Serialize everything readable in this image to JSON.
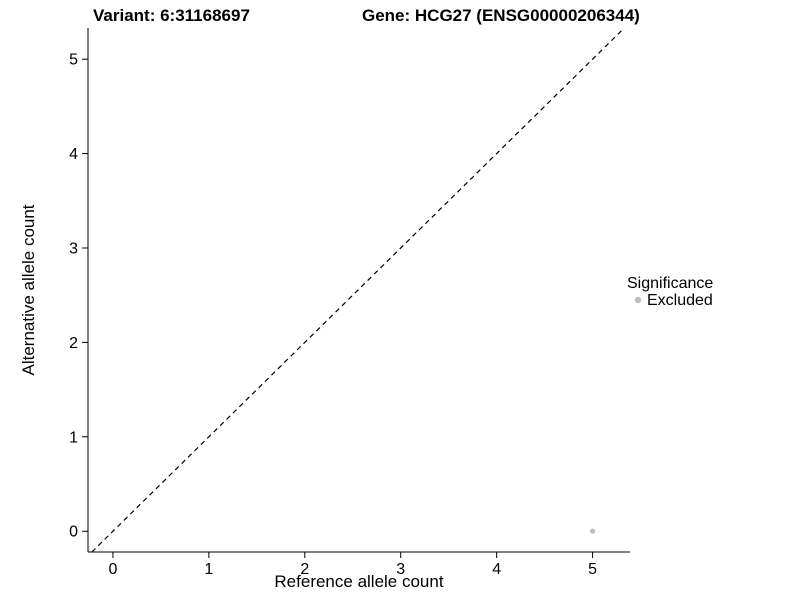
{
  "titles": {
    "variant": "Variant: 6:31168697",
    "gene": "Gene: HCG27 (ENSG00000206344)"
  },
  "legend": {
    "title": "Significance",
    "items": [
      {
        "label": "Excluded",
        "color": "#bebebe"
      }
    ]
  },
  "chart_data": {
    "type": "scatter",
    "title": "Variant: 6:31168697 | Gene: HCG27 (ENSG00000206344)",
    "xlabel": "Reference allele count",
    "ylabel": "Alternative allele count",
    "xlim": [
      -0.26,
      5.39
    ],
    "ylim": [
      -0.22,
      5.33
    ],
    "xticks": [
      0,
      1,
      2,
      3,
      4,
      5
    ],
    "yticks": [
      0,
      1,
      2,
      3,
      4,
      5
    ],
    "grid": false,
    "legend_position": "right",
    "series": [
      {
        "name": "Excluded",
        "color": "#bebebe",
        "points": [
          [
            5,
            0
          ]
        ]
      }
    ],
    "reference_line": {
      "type": "identity y = x",
      "style": "dashed",
      "color": "#000000"
    }
  }
}
